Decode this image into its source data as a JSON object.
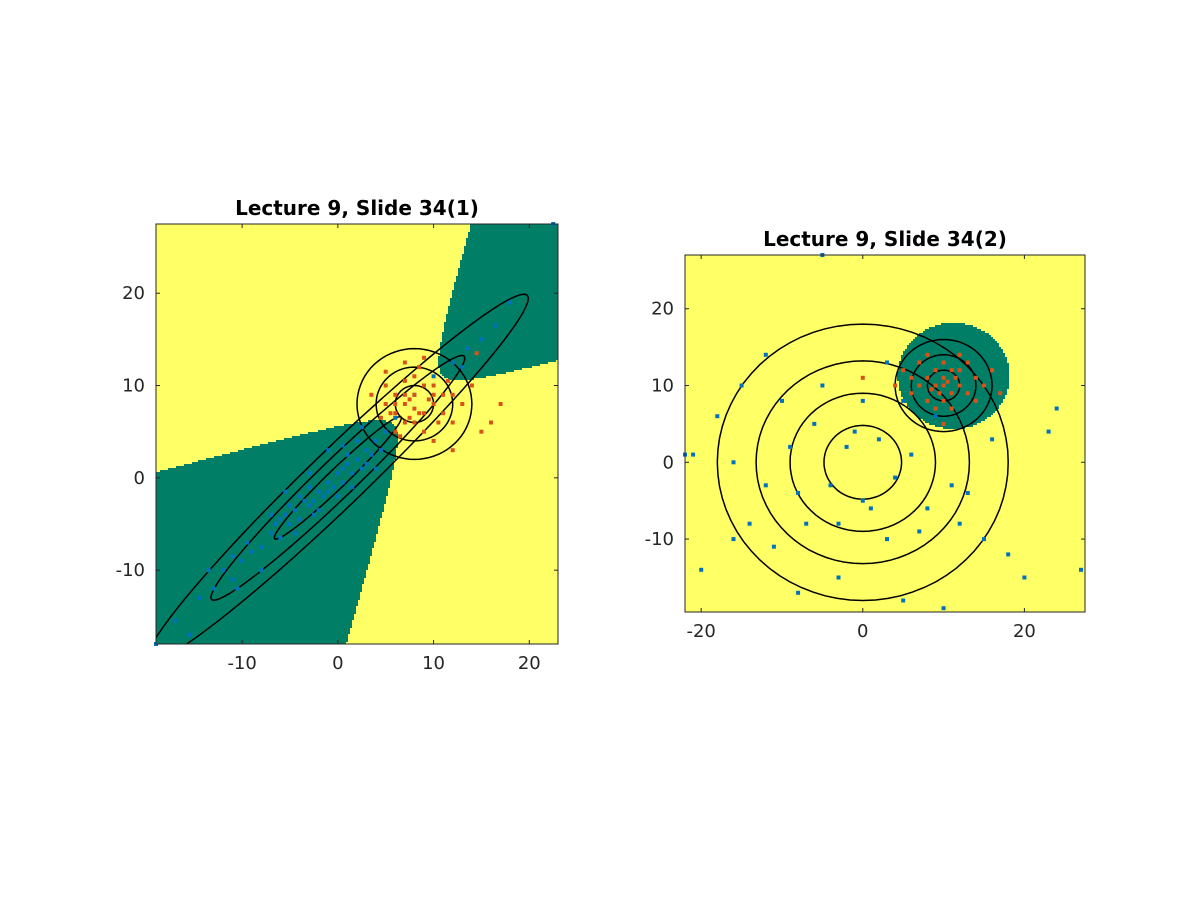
{
  "chart_data": [
    {
      "type": "scatter",
      "title": "Lecture 9, Slide 34(1)",
      "xlabel": "",
      "ylabel": "",
      "xlim": [
        -19,
        23
      ],
      "ylim": [
        -18,
        27.5
      ],
      "xticks": [
        -10,
        0,
        10,
        20
      ],
      "xtick_labels": [
        "-10",
        "0",
        "10",
        "20"
      ],
      "yticks": [
        -10,
        0,
        10,
        20
      ],
      "ytick_labels": [
        "-10",
        "0",
        "10",
        "20"
      ],
      "grid": false,
      "legend": "none",
      "region_colors": {
        "class1": "#007f66",
        "class2": "#ffff66"
      },
      "decision_regions": "hyperbolic boundary; class 1 region on left and bottom-right",
      "series": [
        {
          "color": "#0072bd",
          "mean": [
            0,
            0
          ],
          "covariance": [
            [
              44,
              43
            ],
            [
              43,
              44
            ]
          ],
          "contour_mahalanobis": [
            1,
            2,
            3
          ],
          "points": [
            [
              -17,
              -15.5
            ],
            [
              -14.5,
              -13
            ],
            [
              -13,
              -12
            ],
            [
              -12,
              -10
            ],
            [
              -11,
              -11
            ],
            [
              -10,
              -9
            ],
            [
              -9.5,
              -7
            ],
            [
              -9,
              -8
            ],
            [
              -8,
              -7.5
            ],
            [
              -7,
              -6
            ],
            [
              -6.5,
              -5
            ],
            [
              -6,
              -6.5
            ],
            [
              -5.5,
              -4
            ],
            [
              -5,
              -5
            ],
            [
              -4.5,
              -3.5
            ],
            [
              -4,
              -4.5
            ],
            [
              -3.5,
              -2.5
            ],
            [
              -3,
              -3
            ],
            [
              -2.5,
              -4
            ],
            [
              -2,
              -1.5
            ],
            [
              -1.5,
              -2
            ],
            [
              -1,
              -0.5
            ],
            [
              -0.5,
              -1
            ],
            [
              0,
              0.5
            ],
            [
              0.5,
              -0.5
            ],
            [
              1,
              1.5
            ],
            [
              1.5,
              0.5
            ],
            [
              2,
              2
            ],
            [
              2.5,
              1
            ],
            [
              3,
              3
            ],
            [
              3.5,
              2.5
            ],
            [
              4,
              4
            ],
            [
              4.5,
              3
            ],
            [
              5,
              5
            ],
            [
              -3,
              -1
            ],
            [
              -2,
              -3.5
            ],
            [
              0,
              -2
            ],
            [
              1,
              2.5
            ],
            [
              -7,
              -4
            ],
            [
              -4,
              -2
            ],
            [
              2,
              4
            ],
            [
              3,
              1.5
            ],
            [
              -8,
              -10
            ],
            [
              -10.5,
              -12
            ],
            [
              -15.5,
              -17
            ],
            [
              -1,
              -1.5
            ],
            [
              -5,
              -3
            ],
            [
              -6,
              -4.5
            ],
            [
              0.5,
              1
            ],
            [
              1.5,
              -1
            ],
            [
              4,
              1
            ],
            [
              -2.5,
              -2.5
            ],
            [
              -4.5,
              -6
            ],
            [
              -11,
              -8.5
            ],
            [
              -13.5,
              -10
            ],
            [
              6,
              6.5
            ],
            [
              8,
              9
            ],
            [
              10,
              11
            ],
            [
              12,
              12.5
            ],
            [
              13,
              12
            ],
            [
              15,
              15
            ],
            [
              16.5,
              16.5
            ],
            [
              18,
              19
            ],
            [
              22.5,
              27.5
            ],
            [
              -19,
              -18
            ],
            [
              13.5,
              14
            ],
            [
              -1,
              3
            ],
            [
              2.5,
              5.5
            ],
            [
              0.5,
              3.5
            ],
            [
              -3,
              0.5
            ],
            [
              -5.5,
              -1.5
            ]
          ]
        },
        {
          "color": "#d95319",
          "mean": [
            8,
            8
          ],
          "covariance": [
            [
              4,
              0
            ],
            [
              0,
              4
            ]
          ],
          "contour_mahalanobis": [
            1,
            2,
            3
          ],
          "points": [
            [
              6,
              7
            ],
            [
              7,
              8
            ],
            [
              8,
              9
            ],
            [
              9,
              7
            ],
            [
              8,
              6
            ],
            [
              7,
              9
            ],
            [
              10,
              8
            ],
            [
              6,
              9
            ],
            [
              9,
              10
            ],
            [
              7,
              6
            ],
            [
              10,
              10
            ],
            [
              5,
              8
            ],
            [
              11,
              7
            ],
            [
              8,
              11
            ],
            [
              6,
              5
            ],
            [
              12,
              9
            ],
            [
              9,
              5
            ],
            [
              5,
              10
            ],
            [
              7,
              10.5
            ],
            [
              10.5,
              6
            ],
            [
              4.5,
              6.5
            ],
            [
              11.5,
              10.5
            ],
            [
              8.5,
              12
            ],
            [
              13,
              8
            ],
            [
              3.5,
              9
            ],
            [
              7,
              12.5
            ],
            [
              6.5,
              4.5
            ],
            [
              12,
              6
            ],
            [
              9,
              13
            ],
            [
              14,
              10
            ],
            [
              5,
              11.5
            ],
            [
              10,
              4
            ],
            [
              16,
              6
            ],
            [
              17,
              8
            ],
            [
              15,
              5
            ],
            [
              14.5,
              13.5
            ],
            [
              8,
              7.5
            ],
            [
              7.5,
              8.5
            ],
            [
              8.5,
              7
            ],
            [
              6,
              8
            ],
            [
              10,
              9
            ],
            [
              9.5,
              8.5
            ],
            [
              7.5,
              6.5
            ],
            [
              11,
              9
            ],
            [
              5.5,
              7
            ],
            [
              12,
              3
            ]
          ]
        }
      ]
    },
    {
      "type": "scatter",
      "title": "Lecture 9, Slide 34(2)",
      "xlabel": "",
      "ylabel": "",
      "xlim": [
        -22,
        27.5
      ],
      "ylim": [
        -19.5,
        27
      ],
      "xticks": [
        -20,
        0,
        20
      ],
      "xtick_labels": [
        "-20",
        "0",
        "20"
      ],
      "yticks": [
        -10,
        0,
        10,
        20
      ],
      "ytick_labels": [
        "-10",
        "0",
        "10",
        "20"
      ],
      "grid": false,
      "legend": "none",
      "region_colors": {
        "class1": "#ffff66",
        "class2": "#007f66"
      },
      "decision_regions": "elliptical class 2 region around (10, 10)",
      "series": [
        {
          "color": "#0072bd",
          "mean": [
            0,
            0
          ],
          "covariance": [
            [
              36,
              0
            ],
            [
              0,
              36
            ]
          ],
          "contour_mahalanobis": [
            0.8,
            1.5,
            2.2,
            3.0
          ],
          "points": [
            [
              -5,
              27
            ],
            [
              -15,
              10
            ],
            [
              -16,
              -10
            ],
            [
              -12,
              14
            ],
            [
              -8,
              -17
            ],
            [
              -20,
              -14
            ],
            [
              -21,
              1
            ],
            [
              5,
              -18
            ],
            [
              10,
              -19
            ],
            [
              -3,
              -15
            ],
            [
              18,
              -12
            ],
            [
              23,
              4
            ],
            [
              24,
              7
            ],
            [
              15,
              -10
            ],
            [
              12,
              -8
            ],
            [
              3,
              -10
            ],
            [
              0,
              -5
            ],
            [
              -2,
              2
            ],
            [
              2,
              3
            ],
            [
              -4,
              -3
            ],
            [
              4,
              -2
            ],
            [
              -6,
              5
            ],
            [
              6,
              1
            ],
            [
              -8,
              -4
            ],
            [
              8,
              -6
            ],
            [
              -10,
              8
            ],
            [
              11,
              -3
            ],
            [
              -12,
              -3
            ],
            [
              -5,
              10
            ],
            [
              5,
              8
            ],
            [
              7,
              -9
            ],
            [
              -7,
              -8
            ],
            [
              1,
              -6
            ],
            [
              -1,
              4
            ],
            [
              9,
              6
            ],
            [
              -9,
              2
            ],
            [
              13,
              -4
            ],
            [
              -14,
              -8
            ],
            [
              16,
              3
            ],
            [
              -16,
              0
            ],
            [
              -11,
              -11
            ],
            [
              3,
              13
            ],
            [
              -3,
              -8
            ],
            [
              0,
              8
            ],
            [
              -18,
              6
            ],
            [
              20,
              -15
            ],
            [
              27,
              -14
            ],
            [
              -22,
              1
            ]
          ]
        },
        {
          "color": "#d95319",
          "mean": [
            10,
            10
          ],
          "covariance": [
            [
              4,
              0
            ],
            [
              0,
              4
            ]
          ],
          "contour_mahalanobis": [
            1,
            2,
            3
          ],
          "points": [
            [
              9,
              10
            ],
            [
              10,
              11
            ],
            [
              11,
              9
            ],
            [
              8,
              11
            ],
            [
              12,
              10
            ],
            [
              10,
              8
            ],
            [
              9,
              12
            ],
            [
              11,
              12
            ],
            [
              7,
              10
            ],
            [
              13,
              9
            ],
            [
              10,
              13
            ],
            [
              8,
              8
            ],
            [
              12,
              12
            ],
            [
              6,
              11
            ],
            [
              14,
              11
            ],
            [
              9,
              7
            ],
            [
              11,
              7
            ],
            [
              13,
              13
            ],
            [
              7,
              13
            ],
            [
              15,
              10
            ],
            [
              10,
              10
            ],
            [
              9.5,
              9
            ],
            [
              10.5,
              10.5
            ],
            [
              8.5,
              9.5
            ],
            [
              11.5,
              11
            ],
            [
              6,
              9
            ],
            [
              14,
              8
            ],
            [
              8,
              14
            ],
            [
              12,
              14
            ],
            [
              16,
              12
            ],
            [
              5,
              12
            ],
            [
              10,
              5
            ],
            [
              17,
              9
            ],
            [
              4,
              10
            ],
            [
              0,
              11
            ]
          ]
        }
      ]
    }
  ]
}
